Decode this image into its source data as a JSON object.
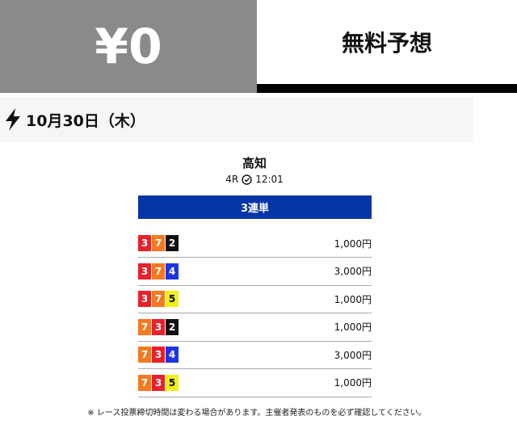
{
  "header": {
    "price": "¥0",
    "tab": "無料予想"
  },
  "date": "10月30日（木）",
  "race": {
    "venue": "高知",
    "number": "4R",
    "time": "12:01"
  },
  "bet_type": "3連単",
  "rows": [
    {
      "combo": [
        "3",
        "7",
        "2"
      ],
      "amount": "1,000円"
    },
    {
      "combo": [
        "3",
        "7",
        "4"
      ],
      "amount": "3,000円"
    },
    {
      "combo": [
        "3",
        "7",
        "5"
      ],
      "amount": "1,000円"
    },
    {
      "combo": [
        "7",
        "3",
        "2"
      ],
      "amount": "1,000円"
    },
    {
      "combo": [
        "7",
        "3",
        "4"
      ],
      "amount": "3,000円"
    },
    {
      "combo": [
        "7",
        "3",
        "5"
      ],
      "amount": "1,000円"
    }
  ],
  "note": "※ レース投票締切時間は変わる場合があります。主催者発表のものを必ず確認してください。"
}
